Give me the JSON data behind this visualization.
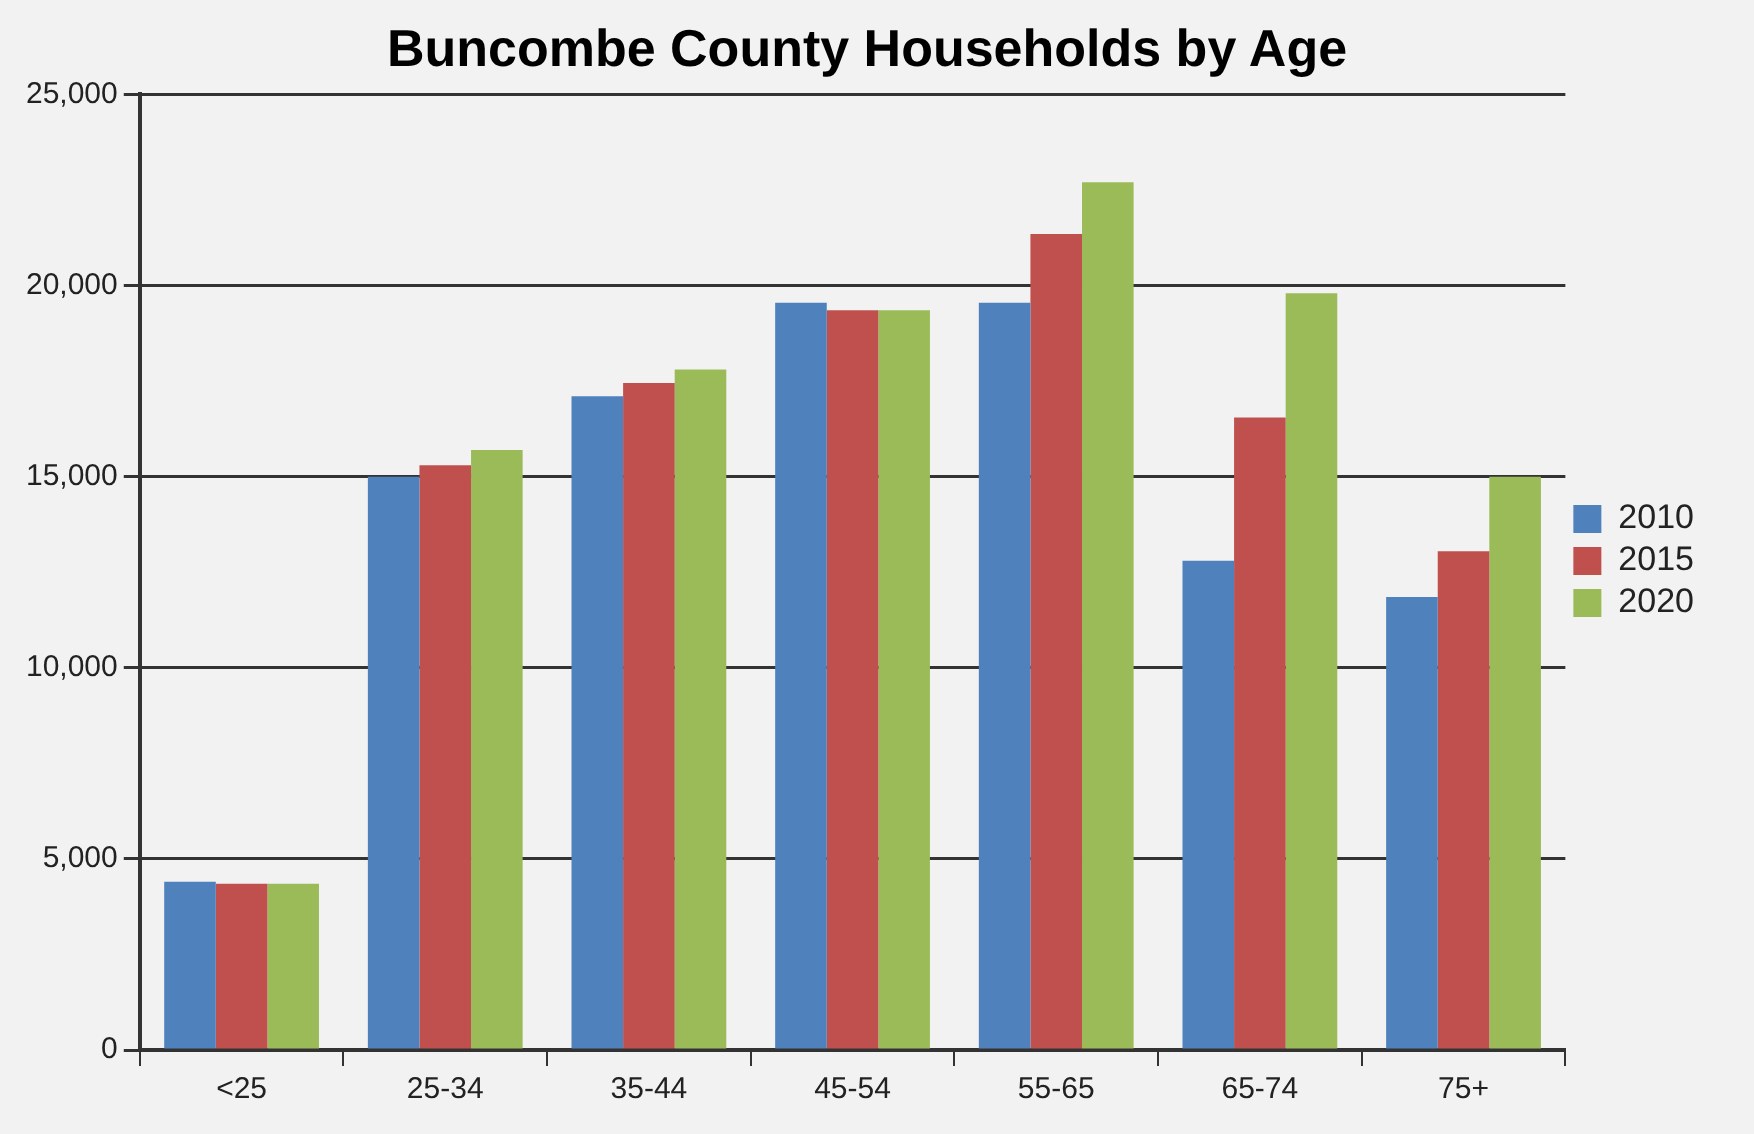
{
  "chart_data": {
    "type": "bar",
    "title": "Buncombe County Households by Age",
    "categories": [
      "<25",
      "25-34",
      "35-44",
      "45-54",
      "55-65",
      "65-74",
      "75+"
    ],
    "series": [
      {
        "name": "2010",
        "color": "#4f81bd",
        "values": [
          4400,
          15000,
          17100,
          19550,
          19550,
          12800,
          11850
        ]
      },
      {
        "name": "2015",
        "color": "#c0504d",
        "values": [
          4350,
          15300,
          17450,
          19350,
          21350,
          16550,
          13050
        ]
      },
      {
        "name": "2020",
        "color": "#9bbb59",
        "values": [
          4350,
          15700,
          17800,
          19350,
          22700,
          19800,
          15000
        ]
      }
    ],
    "ylim": [
      0,
      25000
    ],
    "yticks": [
      {
        "value": 0,
        "label": "0"
      },
      {
        "value": 5000,
        "label": "5,000"
      },
      {
        "value": 10000,
        "label": "10,000"
      },
      {
        "value": 15000,
        "label": "15,000"
      },
      {
        "value": 20000,
        "label": "20,000"
      },
      {
        "value": 25000,
        "label": "25,000"
      }
    ],
    "grid": "y",
    "legend": "right"
  }
}
